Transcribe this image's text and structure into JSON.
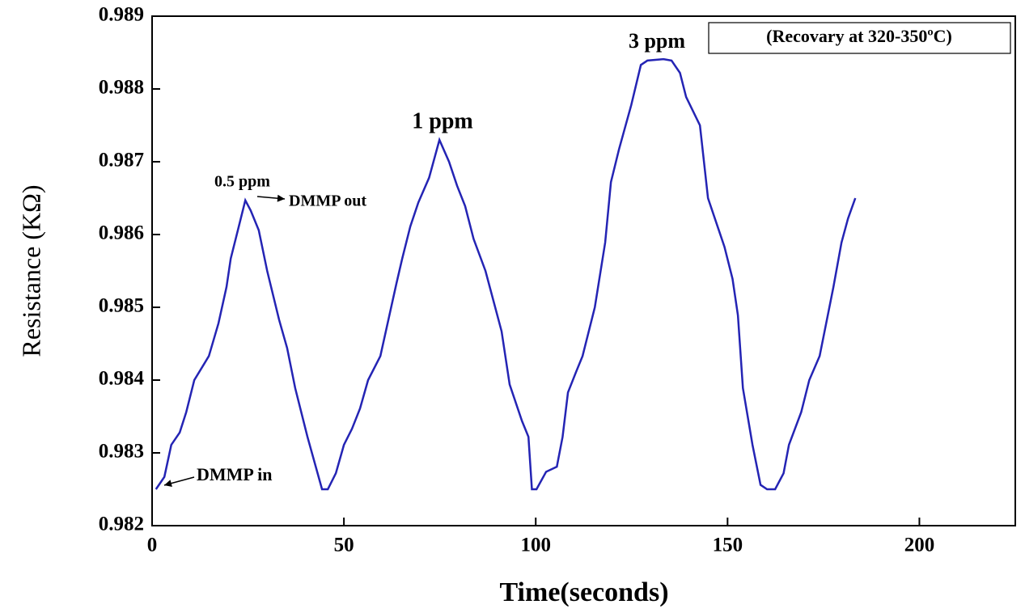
{
  "chart_data": {
    "type": "line",
    "xlabel": "Time(seconds)",
    "ylabel": "Resistance (KΩ)",
    "annotations": [
      "0.5 ppm",
      "DMMP out",
      "1 ppm",
      "3 ppm",
      "DMMP in",
      "(Recovary at 320-350ºC)"
    ],
    "xlim": [
      0,
      225
    ],
    "xticks": [
      0,
      50,
      100,
      150,
      200
    ],
    "ylim": [
      0.982,
      0.989
    ],
    "yticks": [
      0.982,
      0.983,
      0.984,
      0.985,
      0.986,
      0.987,
      0.988,
      0.989
    ],
    "series": [
      {
        "color": "#2424b4",
        "x": [
          1,
          3.2,
          5,
          7.2,
          8.9,
          11,
          14.8,
          17.3,
          19.4,
          20.5,
          22.6,
          24.3,
          25.7,
          27.8,
          30,
          33.1,
          35.2,
          37.3,
          40.5,
          44.3,
          45.8,
          47.9,
          50,
          52.1,
          54.2,
          56.3,
          59.5,
          63.7,
          65.2,
          67.3,
          69.4,
          72.2,
          74.9,
          77.4,
          79.5,
          81.6,
          83.8,
          86.9,
          91.1,
          93.2,
          96.4,
          98.1,
          99,
          100.2,
          102.7,
          105.5,
          107,
          108.4,
          110.5,
          112.2,
          115.4,
          118.1,
          119.6,
          121.7,
          124.9,
          127.4,
          129.1,
          133.3,
          135.4,
          137.6,
          139.2,
          142.8,
          144.9,
          149.2,
          151.3,
          152.7,
          154,
          156.5,
          158.6,
          160.3,
          162.4,
          164.6,
          166,
          169.2,
          171.3,
          174,
          177.6,
          179.7,
          181.4,
          183.3
        ],
        "values": [
          0.9825,
          0.98267,
          0.98311,
          0.98328,
          0.98356,
          0.984,
          0.98433,
          0.98478,
          0.98528,
          0.98567,
          0.98611,
          0.98647,
          0.98633,
          0.98606,
          0.9855,
          0.98483,
          0.98444,
          0.98389,
          0.98322,
          0.9825,
          0.9825,
          0.98272,
          0.98311,
          0.98333,
          0.98361,
          0.984,
          0.98433,
          0.98533,
          0.98567,
          0.98611,
          0.98644,
          0.98678,
          0.9873,
          0.987,
          0.98667,
          0.98639,
          0.98594,
          0.9855,
          0.98467,
          0.98394,
          0.98344,
          0.98322,
          0.9825,
          0.9825,
          0.98274,
          0.98281,
          0.98322,
          0.98383,
          0.98411,
          0.98433,
          0.985,
          0.98589,
          0.98672,
          0.98717,
          0.98778,
          0.98833,
          0.98839,
          0.98841,
          0.98839,
          0.98822,
          0.98789,
          0.9875,
          0.9865,
          0.98583,
          0.98539,
          0.98489,
          0.98389,
          0.98311,
          0.98256,
          0.9825,
          0.9825,
          0.98272,
          0.98311,
          0.98356,
          0.984,
          0.98433,
          0.98528,
          0.98589,
          0.98622,
          0.9865
        ]
      }
    ]
  }
}
